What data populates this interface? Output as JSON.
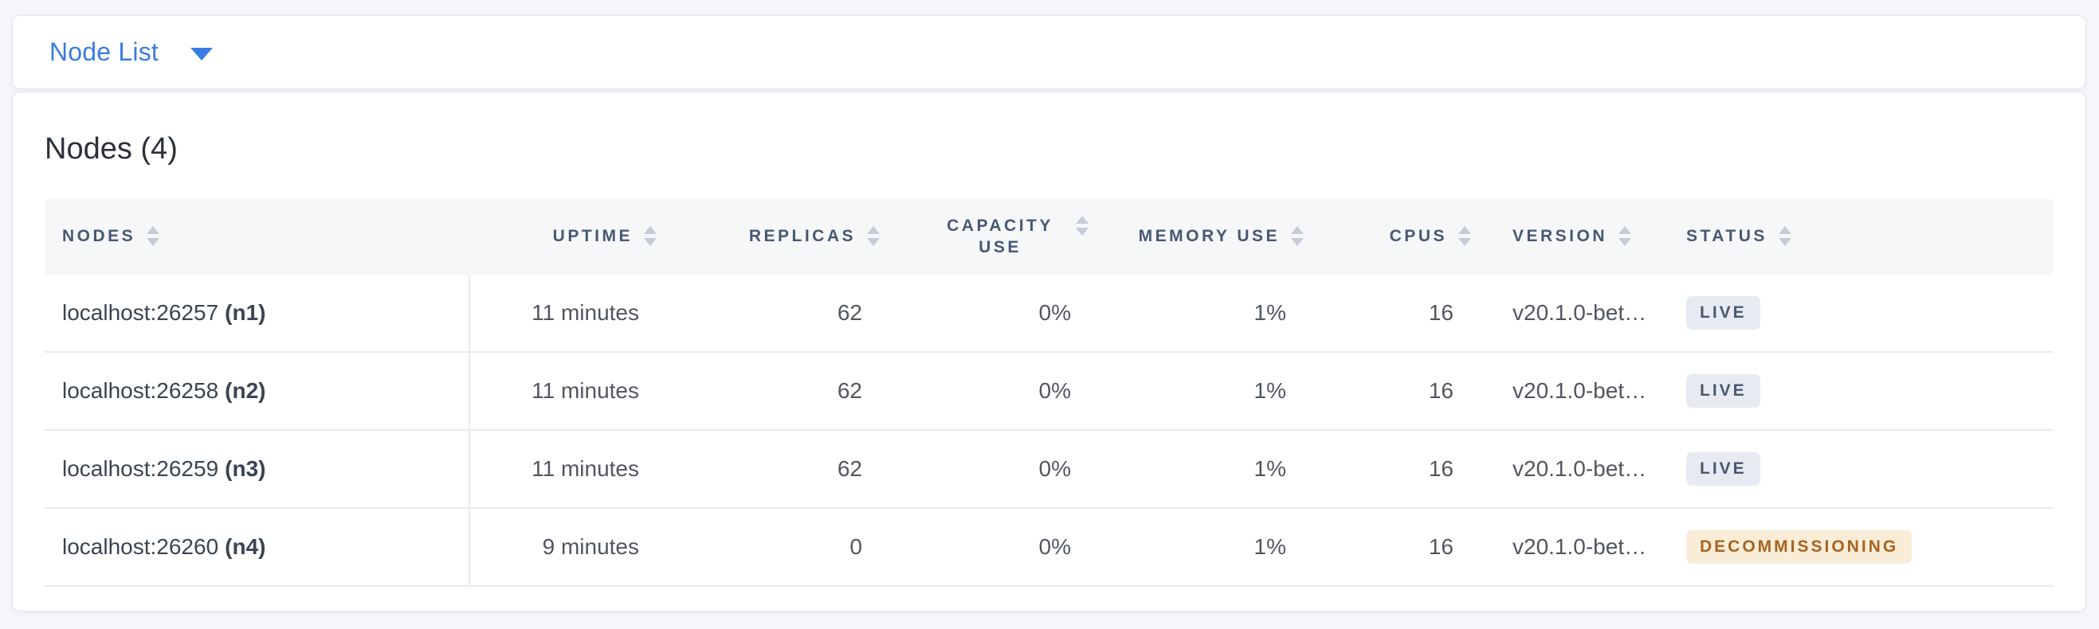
{
  "view_selector": {
    "label": "Node List"
  },
  "panel": {
    "title": "Nodes (4)"
  },
  "table": {
    "columns": [
      {
        "label": "NODES"
      },
      {
        "label": "UPTIME"
      },
      {
        "label": "REPLICAS"
      },
      {
        "label": "CAPACITY USE"
      },
      {
        "label": "MEMORY USE"
      },
      {
        "label": "CPUS"
      },
      {
        "label": "VERSION"
      },
      {
        "label": "STATUS"
      }
    ],
    "rows": [
      {
        "address": "localhost:26257",
        "node_id": "(n1)",
        "uptime": "11 minutes",
        "replicas": "62",
        "capacity_use": "0%",
        "memory_use": "1%",
        "cpus": "16",
        "version": "v20.1.0-bet…",
        "status": {
          "label": "LIVE",
          "variant": "live"
        }
      },
      {
        "address": "localhost:26258",
        "node_id": "(n2)",
        "uptime": "11 minutes",
        "replicas": "62",
        "capacity_use": "0%",
        "memory_use": "1%",
        "cpus": "16",
        "version": "v20.1.0-bet…",
        "status": {
          "label": "LIVE",
          "variant": "live"
        }
      },
      {
        "address": "localhost:26259",
        "node_id": "(n3)",
        "uptime": "11 minutes",
        "replicas": "62",
        "capacity_use": "0%",
        "memory_use": "1%",
        "cpus": "16",
        "version": "v20.1.0-bet…",
        "status": {
          "label": "LIVE",
          "variant": "live"
        }
      },
      {
        "address": "localhost:26260",
        "node_id": "(n4)",
        "uptime": "9 minutes",
        "replicas": "0",
        "capacity_use": "0%",
        "memory_use": "1%",
        "cpus": "16",
        "version": "v20.1.0-bet…",
        "status": {
          "label": "DECOMMISSIONING",
          "variant": "decommissioning"
        }
      }
    ]
  },
  "icons": {
    "dropdown_caret": "caret-down-icon",
    "column_sort": "sort-arrows-icon"
  },
  "colors": {
    "page_background": "#F4F6FA",
    "accent_blue": "#3B7CE2",
    "header_text": "#475872",
    "title_text": "#2B3039",
    "cell_text": "#51565F",
    "row_border": "#E8EBF1",
    "header_row_background": "#F6F7F9",
    "badge_live_bg": "#E8EAF1",
    "badge_live_text": "#475872",
    "badge_decommissioning_bg": "#F9EDD8",
    "badge_decommissioning_text": "#A8631F"
  }
}
